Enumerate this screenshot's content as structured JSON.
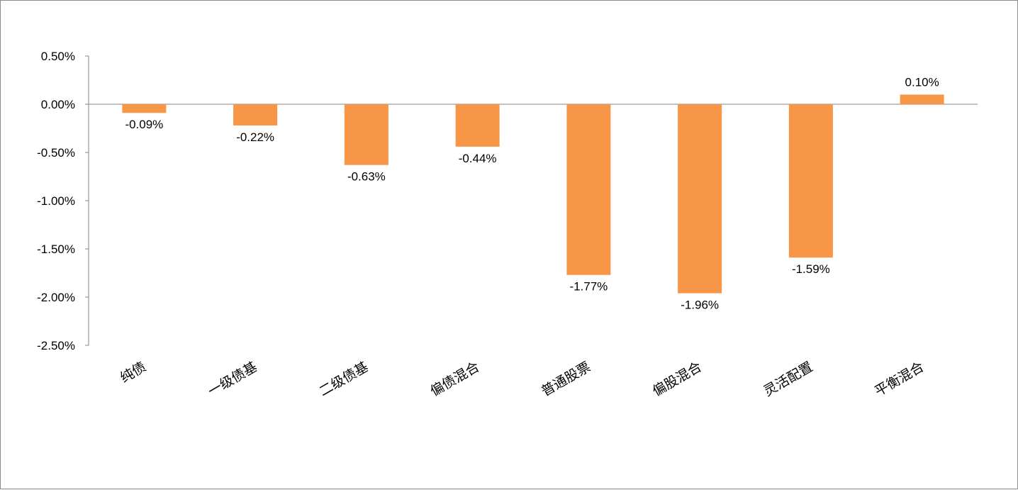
{
  "chart_data": {
    "type": "bar",
    "categories": [
      "纯债",
      "一级债基",
      "二级债基",
      "偏债混合",
      "普通股票",
      "偏股混合",
      "灵活配置",
      "平衡混合"
    ],
    "values": [
      -0.09,
      -0.22,
      -0.63,
      -0.44,
      -1.77,
      -1.96,
      -1.59,
      0.1
    ],
    "data_labels": [
      "-0.09%",
      "-0.22%",
      "-0.63%",
      "-0.44%",
      "-1.77%",
      "-1.96%",
      "-1.59%",
      "0.10%"
    ],
    "y_ticks": [
      "0.50%",
      "0.00%",
      "-0.50%",
      "-1.00%",
      "-1.50%",
      "-2.00%",
      "-2.50%"
    ],
    "y_tick_values": [
      0.5,
      0.0,
      -0.5,
      -1.0,
      -1.5,
      -2.0,
      -2.5
    ],
    "ylim": [
      -2.5,
      0.5
    ],
    "unit": "%",
    "grid": false,
    "bar_color": "#F79646",
    "axis_color": "#868686"
  }
}
